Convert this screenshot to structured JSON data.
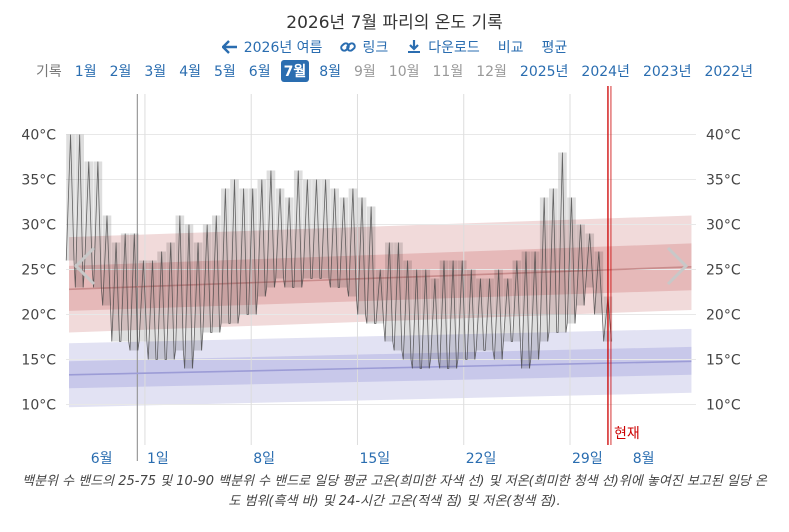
{
  "header": {
    "title": "2026년 7월 파리의 온도 기록"
  },
  "nav": {
    "back_label": "2026년 여름",
    "link_label": "링크",
    "download_label": "다운로드",
    "compare_label": "비교",
    "average_label": "평균"
  },
  "months": {
    "lead": "기록",
    "items": [
      {
        "label": "1월",
        "state": "active"
      },
      {
        "label": "2월",
        "state": "active"
      },
      {
        "label": "3월",
        "state": "active"
      },
      {
        "label": "4월",
        "state": "active"
      },
      {
        "label": "5월",
        "state": "active"
      },
      {
        "label": "6월",
        "state": "active"
      },
      {
        "label": "7월",
        "state": "selected"
      },
      {
        "label": "8월",
        "state": "active"
      },
      {
        "label": "9월",
        "state": "dim"
      },
      {
        "label": "10월",
        "state": "dim"
      },
      {
        "label": "11월",
        "state": "dim"
      },
      {
        "label": "12월",
        "state": "dim"
      },
      {
        "label": "2025년",
        "state": "active"
      },
      {
        "label": "2024년",
        "state": "active"
      },
      {
        "label": "2023년",
        "state": "active"
      },
      {
        "label": "2022년",
        "state": "active"
      }
    ]
  },
  "caption": "백분위 수 밴드의 25-75 및 10-90 백분위 수 밴드로 일당 평균 고온(희미한 자색 선) 및 저온(희미한 청색 선)위에 놓여진 보고된 일당 온도 범위(흑색 바) 및 24-시간 고온(적색 점) 및 저온(청색 점).",
  "chart_data": {
    "type": "bar",
    "xlim": [
      -4.2,
      37.3
    ],
    "ylim": [
      5.5,
      44.5
    ],
    "y_ticks": [
      {
        "v": 10,
        "label": "10°C"
      },
      {
        "v": 15,
        "label": "15°C"
      },
      {
        "v": 20,
        "label": "20°C"
      },
      {
        "v": 25,
        "label": "25°C"
      },
      {
        "v": 30,
        "label": "30°C"
      },
      {
        "v": 35,
        "label": "35°C"
      },
      {
        "v": 40,
        "label": "40°C"
      }
    ],
    "x_ticks": [
      {
        "x": -2.7,
        "label": "6월"
      },
      {
        "x": 1,
        "label": "1일"
      },
      {
        "x": 8,
        "label": "8일"
      },
      {
        "x": 15,
        "label": "15일"
      },
      {
        "x": 22,
        "label": "22일"
      },
      {
        "x": 29,
        "label": "29일"
      },
      {
        "x": 33,
        "label": "8월"
      }
    ],
    "month_boundary_x": 0.5,
    "now_x": 31.5,
    "now_label": "현재",
    "daily_ranges": [
      {
        "day": -3.9,
        "low": 26,
        "high": 40
      },
      {
        "day": -3.3,
        "low": 23,
        "high": 40
      },
      {
        "day": -2.7,
        "low": 25,
        "high": 37
      },
      {
        "day": -2.1,
        "low": 23,
        "high": 37
      },
      {
        "day": -1.5,
        "low": 21,
        "high": 31
      },
      {
        "day": -0.9,
        "low": 17,
        "high": 28
      },
      {
        "day": -0.3,
        "low": 17,
        "high": 29
      },
      {
        "day": 0.3,
        "low": 16,
        "high": 29
      },
      {
        "day": 0.9,
        "low": 17,
        "high": 26
      },
      {
        "day": 1.5,
        "low": 15,
        "high": 26
      },
      {
        "day": 2.1,
        "low": 15,
        "high": 27
      },
      {
        "day": 2.7,
        "low": 15,
        "high": 28
      },
      {
        "day": 3.3,
        "low": 16,
        "high": 31
      },
      {
        "day": 3.9,
        "low": 14,
        "high": 30
      },
      {
        "day": 4.5,
        "low": 16,
        "high": 28
      },
      {
        "day": 5.1,
        "low": 18,
        "high": 30
      },
      {
        "day": 5.7,
        "low": 18,
        "high": 31
      },
      {
        "day": 6.3,
        "low": 19,
        "high": 34
      },
      {
        "day": 6.9,
        "low": 19,
        "high": 35
      },
      {
        "day": 7.5,
        "low": 20,
        "high": 34
      },
      {
        "day": 8.1,
        "low": 20,
        "high": 34
      },
      {
        "day": 8.7,
        "low": 22,
        "high": 35
      },
      {
        "day": 9.3,
        "low": 23,
        "high": 36
      },
      {
        "day": 9.9,
        "low": 24,
        "high": 34
      },
      {
        "day": 10.5,
        "low": 23,
        "high": 33
      },
      {
        "day": 11.1,
        "low": 23,
        "high": 36
      },
      {
        "day": 11.7,
        "low": 24,
        "high": 35
      },
      {
        "day": 12.3,
        "low": 24,
        "high": 35
      },
      {
        "day": 12.9,
        "low": 24,
        "high": 35
      },
      {
        "day": 13.5,
        "low": 23,
        "high": 34
      },
      {
        "day": 14.1,
        "low": 23,
        "high": 33
      },
      {
        "day": 14.7,
        "low": 22,
        "high": 34
      },
      {
        "day": 15.3,
        "low": 20,
        "high": 33
      },
      {
        "day": 15.9,
        "low": 19,
        "high": 32
      },
      {
        "day": 16.5,
        "low": 19,
        "high": 25
      },
      {
        "day": 17.1,
        "low": 17,
        "high": 28
      },
      {
        "day": 17.7,
        "low": 16,
        "high": 28
      },
      {
        "day": 18.3,
        "low": 15,
        "high": 26
      },
      {
        "day": 18.9,
        "low": 14,
        "high": 25
      },
      {
        "day": 19.5,
        "low": 14,
        "high": 25
      },
      {
        "day": 20.1,
        "low": 15,
        "high": 24
      },
      {
        "day": 20.7,
        "low": 14,
        "high": 26
      },
      {
        "day": 21.3,
        "low": 14,
        "high": 26
      },
      {
        "day": 21.9,
        "low": 15,
        "high": 26
      },
      {
        "day": 22.5,
        "low": 15,
        "high": 25
      },
      {
        "day": 23.1,
        "low": 16,
        "high": 24
      },
      {
        "day": 23.7,
        "low": 16,
        "high": 24
      },
      {
        "day": 24.3,
        "low": 15,
        "high": 25
      },
      {
        "day": 24.9,
        "low": 17,
        "high": 24
      },
      {
        "day": 25.5,
        "low": 17,
        "high": 26
      },
      {
        "day": 26.1,
        "low": 14,
        "high": 27
      },
      {
        "day": 26.7,
        "low": 15,
        "high": 27
      },
      {
        "day": 27.3,
        "low": 17,
        "high": 33
      },
      {
        "day": 27.9,
        "low": 18,
        "high": 34
      },
      {
        "day": 28.5,
        "low": 18,
        "high": 38
      },
      {
        "day": 29.1,
        "low": 19,
        "high": 33
      },
      {
        "day": 29.7,
        "low": 21,
        "high": 30
      },
      {
        "day": 30.3,
        "low": 23,
        "high": 29
      },
      {
        "day": 30.9,
        "low": 20,
        "high": 27
      },
      {
        "day": 31.5,
        "low": 17,
        "high": 22
      }
    ],
    "normal_high": {
      "x": [
        -4,
        37
      ],
      "mean": [
        22.8,
        25.3
      ],
      "p25": [
        20.4,
        22.7
      ],
      "p75": [
        25.4,
        27.9
      ],
      "p10": [
        18.0,
        20.5
      ],
      "p90": [
        28.6,
        31.0
      ]
    },
    "normal_low": {
      "x": [
        -4,
        37
      ],
      "mean": [
        13.3,
        14.8
      ],
      "p25": [
        11.8,
        13.3
      ],
      "p75": [
        14.8,
        16.4
      ],
      "p10": [
        9.7,
        11.3
      ],
      "p90": [
        16.8,
        18.4
      ]
    },
    "colors": {
      "band_high_outer": "#f1dada",
      "band_high_inner": "#e6b9b9",
      "band_low_outer": "#e2e2f3",
      "band_low_inner": "#c8c8ea",
      "mean_high": "#c98c8c",
      "mean_low": "#9c9cd6",
      "bar": "#000000",
      "now": "#cc0000"
    }
  }
}
